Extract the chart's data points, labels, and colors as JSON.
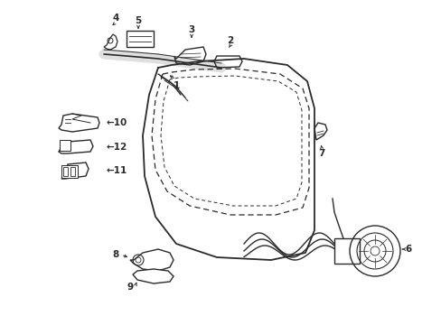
{
  "background_color": "#ffffff",
  "line_color": "#2a2a2a",
  "fig_width": 4.89,
  "fig_height": 3.6,
  "dpi": 100
}
